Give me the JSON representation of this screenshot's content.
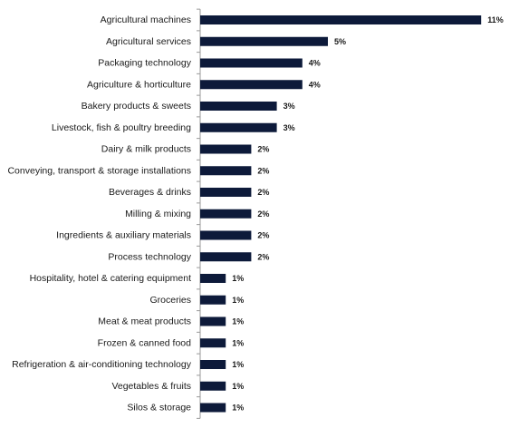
{
  "chart_data": {
    "type": "bar",
    "orientation": "horizontal",
    "categories": [
      "Agricultural machines",
      "Agricultural services",
      "Packaging technology",
      "Agriculture & horticulture",
      "Bakery products & sweets",
      "Livestock, fish & poultry breeding",
      "Dairy & milk products",
      "Conveying, transport & storage installations",
      "Beverages & drinks",
      "Milling & mixing",
      "Ingredients & auxiliary materials",
      "Process technology",
      "Hospitality, hotel & catering equipment",
      "Groceries",
      "Meat & meat products",
      "Frozen & canned food",
      "Refrigeration & air-conditioning technology",
      "Vegetables & fruits",
      "Silos & storage"
    ],
    "values": [
      11,
      5,
      4,
      4,
      3,
      3,
      2,
      2,
      2,
      2,
      2,
      2,
      1,
      1,
      1,
      1,
      1,
      1,
      1
    ],
    "value_labels": [
      "11%",
      "5%",
      "4%",
      "4%",
      "3%",
      "3%",
      "2%",
      "2%",
      "2%",
      "2%",
      "2%",
      "2%",
      "1%",
      "1%",
      "1%",
      "1%",
      "1%",
      "1%",
      "1%"
    ],
    "unit": "%",
    "title": "",
    "xlabel": "",
    "ylabel": "",
    "xlim": [
      0,
      11
    ],
    "grid": false,
    "legend": "none",
    "bar_color": "#0d1a3a"
  }
}
